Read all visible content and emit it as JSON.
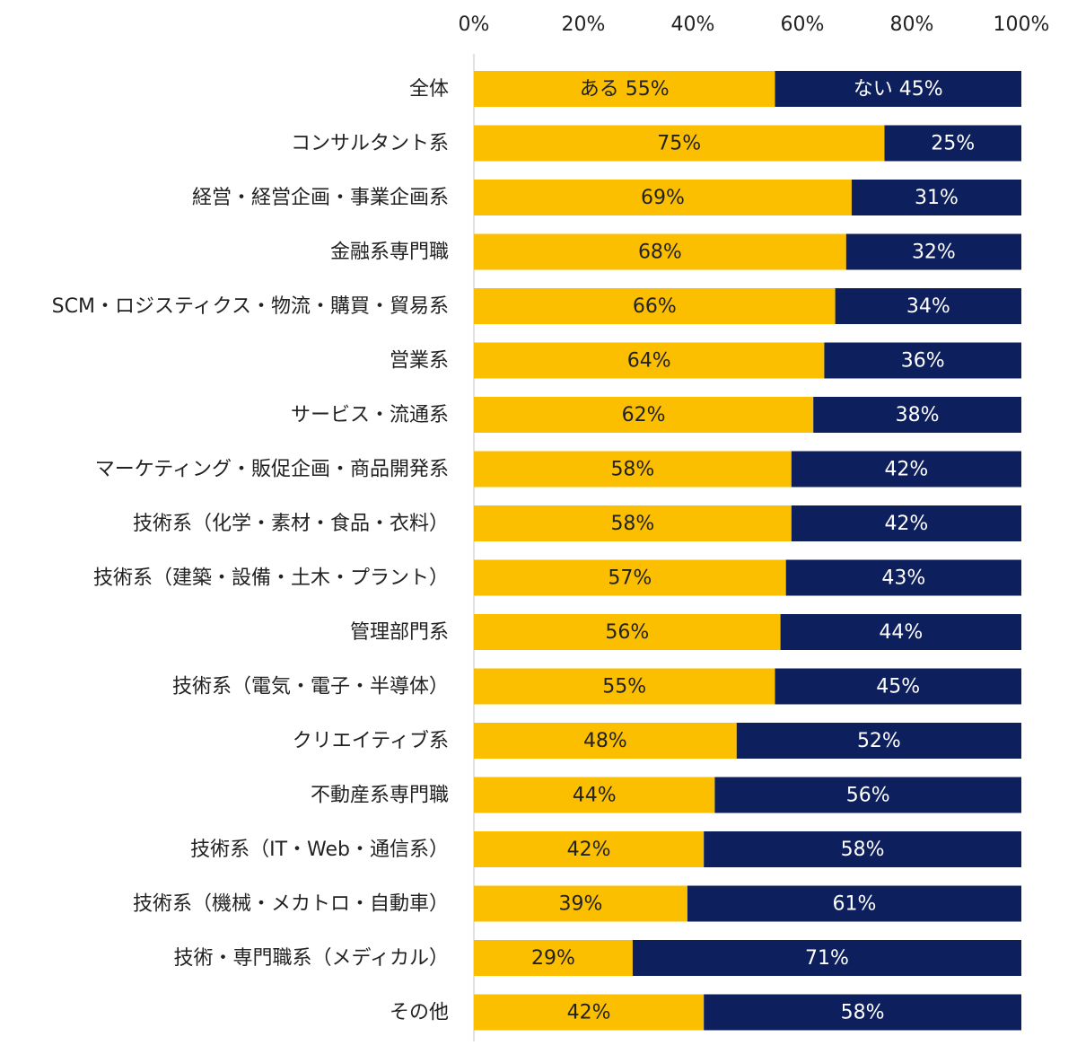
{
  "chart_data": {
    "type": "bar",
    "orientation": "horizontal",
    "stacked": true,
    "xlim": [
      0,
      100
    ],
    "x_ticks": [
      "0%",
      "20%",
      "40%",
      "60%",
      "80%",
      "100%"
    ],
    "tick_position": "top",
    "grid": false,
    "categories": [
      "全体",
      "コンサルタント系",
      "経営・経営企画・事業企画系",
      "金融系専門職",
      "SCM・ロジスティクス・物流・購買・貿易系",
      "営業系",
      "サービス・流通系",
      "マーケティング・販促企画・商品開発系",
      "技術系（化学・素材・食品・衣料）",
      "技術系（建築・設備・土木・プラント）",
      "管理部門系",
      "技術系（電気・電子・半導体）",
      "クリエイティブ系",
      "不動産系専門職",
      "技術系（IT・Web・通信系）",
      "技術系（機械・メカトロ・自動車）",
      "技術・専門職系（メディカル）",
      "その他"
    ],
    "series": [
      {
        "name": "ある",
        "color": "#fbbf00",
        "text_color": "#222222",
        "values": [
          55,
          75,
          69,
          68,
          66,
          64,
          62,
          58,
          58,
          57,
          56,
          55,
          48,
          44,
          42,
          39,
          29,
          42
        ],
        "labels": [
          "ある 55%",
          "75%",
          "69%",
          "68%",
          "66%",
          "64%",
          "62%",
          "58%",
          "58%",
          "57%",
          "56%",
          "55%",
          "48%",
          "44%",
          "42%",
          "39%",
          "29%",
          "42%"
        ]
      },
      {
        "name": "ない",
        "color": "#0d1f5c",
        "text_color": "#ffffff",
        "values": [
          45,
          25,
          31,
          32,
          34,
          36,
          38,
          42,
          42,
          43,
          44,
          45,
          52,
          56,
          58,
          61,
          71,
          58
        ],
        "labels": [
          "ない 45%",
          "25%",
          "31%",
          "32%",
          "34%",
          "36%",
          "38%",
          "42%",
          "42%",
          "43%",
          "44%",
          "45%",
          "52%",
          "56%",
          "58%",
          "61%",
          "71%",
          "58%"
        ]
      }
    ]
  }
}
